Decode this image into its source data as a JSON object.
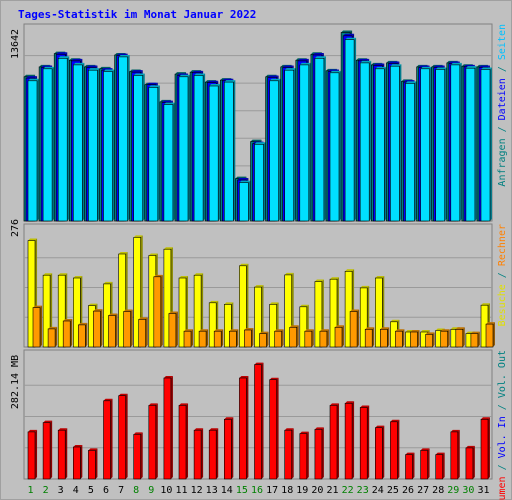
{
  "title": "Tages-Statistik im Monat Januar 2022",
  "chart_data": [
    {
      "type": "bar",
      "panel": "hits",
      "categories": [
        "1",
        "2",
        "3",
        "4",
        "5",
        "6",
        "7",
        "8",
        "9",
        "10",
        "11",
        "12",
        "13",
        "14",
        "15",
        "16",
        "17",
        "18",
        "19",
        "20",
        "21",
        "22",
        "23",
        "24",
        "25",
        "26",
        "27",
        "28",
        "29",
        "30",
        "31"
      ],
      "weekend_days": [
        "1",
        "2",
        "8",
        "9",
        "15",
        "16",
        "22",
        "23",
        "29",
        "30"
      ],
      "ytick": "13642",
      "ylim": [
        0,
        13642
      ],
      "right_label": [
        {
          "text": "Anfragen",
          "color": "#008080"
        },
        {
          "text": " / ",
          "color": "#008080"
        },
        {
          "text": "Dateien",
          "color": "#0000ff"
        },
        {
          "text": " / ",
          "color": "#008080"
        },
        {
          "text": "Seiten",
          "color": "#00c0ff"
        }
      ],
      "series": [
        {
          "name": "Anfragen",
          "color": "#008080",
          "values": [
            10900,
            11650,
            12650,
            12150,
            11650,
            11500,
            12550,
            11300,
            10300,
            9000,
            11100,
            11250,
            10500,
            10650,
            3200,
            6000,
            10900,
            11650,
            12150,
            12600,
            11350,
            14250,
            12150,
            11800,
            11950,
            10550,
            11650,
            11650,
            11950,
            11700,
            11650
          ]
        },
        {
          "name": "Dateien",
          "color": "#0000ff",
          "values": [
            10800,
            11600,
            12600,
            12100,
            11600,
            11400,
            12500,
            11250,
            10300,
            8950,
            11000,
            11200,
            10450,
            10600,
            3100,
            5850,
            10850,
            11600,
            12100,
            12550,
            11300,
            14000,
            12100,
            11750,
            11900,
            10500,
            11600,
            11600,
            11900,
            11650,
            11600
          ]
        },
        {
          "name": "Seiten",
          "color": "#00e0ff",
          "values": [
            10600,
            11500,
            12300,
            11800,
            11400,
            11300,
            12400,
            11000,
            10100,
            8800,
            10900,
            11000,
            10200,
            10500,
            2900,
            5800,
            10600,
            11400,
            11800,
            12300,
            11200,
            13700,
            11950,
            11500,
            11700,
            10400,
            11500,
            11450,
            11800,
            11550,
            11450
          ]
        }
      ]
    },
    {
      "type": "bar",
      "panel": "visits",
      "categories": [
        "1",
        "2",
        "3",
        "4",
        "5",
        "6",
        "7",
        "8",
        "9",
        "10",
        "11",
        "12",
        "13",
        "14",
        "15",
        "16",
        "17",
        "18",
        "19",
        "20",
        "21",
        "22",
        "23",
        "24",
        "25",
        "26",
        "27",
        "28",
        "29",
        "30",
        "31"
      ],
      "ytick": "276",
      "ylim": [
        0,
        276
      ],
      "right_label": [
        {
          "text": "Besuche",
          "color": "#e0e000"
        },
        {
          "text": " / ",
          "color": "#008080"
        },
        {
          "text": "Rechner",
          "color": "#ff8000"
        }
      ],
      "series": [
        {
          "name": "Besuche",
          "color": "#ffff00",
          "values": [
            270,
            182,
            182,
            175,
            105,
            160,
            236,
            278,
            232,
            248,
            175,
            182,
            112,
            108,
            206,
            152,
            108,
            183,
            102,
            166,
            172,
            192,
            150,
            175,
            64,
            38,
            38,
            42,
            45,
            34,
            106
          ]
        },
        {
          "name": "Rechner",
          "color": "#ff9900",
          "values": [
            100,
            46,
            66,
            56,
            91,
            80,
            90,
            70,
            178,
            85,
            40,
            40,
            40,
            40,
            43,
            34,
            40,
            50,
            40,
            40,
            50,
            90,
            45,
            45,
            40,
            38,
            32,
            40,
            45,
            34,
            58
          ]
        }
      ]
    },
    {
      "type": "bar",
      "panel": "volume",
      "categories": [
        "1",
        "2",
        "3",
        "4",
        "5",
        "6",
        "7",
        "8",
        "9",
        "10",
        "11",
        "12",
        "13",
        "14",
        "15",
        "16",
        "17",
        "18",
        "19",
        "20",
        "21",
        "22",
        "23",
        "24",
        "25",
        "26",
        "27",
        "28",
        "29",
        "30",
        "31"
      ],
      "ytick": "282.14 MB",
      "ylim": [
        0,
        282.14
      ],
      "right_label": [
        {
          "text": "Volumen",
          "color": "#ff0000"
        },
        {
          "text": " / ",
          "color": "#008080"
        },
        {
          "text": "Vol. In",
          "color": "#0000ff"
        },
        {
          "text": " / ",
          "color": "#008080"
        },
        {
          "text": "Vol. Out",
          "color": "#008080"
        }
      ],
      "series": [
        {
          "name": "Volumen",
          "color": "#ff0000",
          "values": [
            112,
            134,
            116,
            76,
            68,
            186,
            198,
            106,
            175,
            240,
            175,
            116,
            116,
            142,
            240,
            272,
            236,
            116,
            108,
            118,
            175,
            180,
            170,
            122,
            136,
            58,
            68,
            58,
            112,
            74,
            142
          ]
        }
      ]
    }
  ]
}
